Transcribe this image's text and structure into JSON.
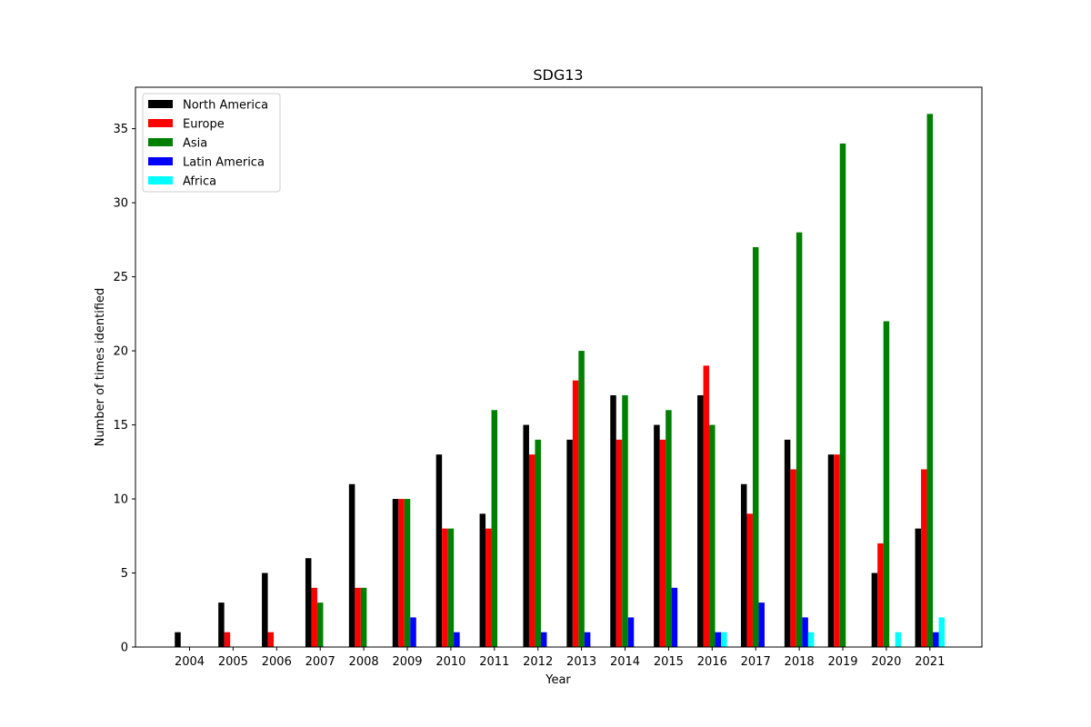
{
  "chart_data": {
    "type": "bar",
    "title": "SDG13",
    "xlabel": "Year",
    "ylabel": "Number of times identified",
    "ylim": [
      0,
      37.8
    ],
    "yticks": [
      0,
      5,
      10,
      15,
      20,
      25,
      30,
      35
    ],
    "legend_position": "top-left",
    "grid": false,
    "categories": [
      "2004",
      "2005",
      "2006",
      "2007",
      "2008",
      "2009",
      "2010",
      "2011",
      "2012",
      "2013",
      "2014",
      "2015",
      "2016",
      "2017",
      "2018",
      "2019",
      "2020",
      "2021"
    ],
    "series": [
      {
        "name": "North America",
        "color": "#000000",
        "values": [
          1,
          3,
          5,
          6,
          11,
          10,
          13,
          9,
          15,
          14,
          17,
          15,
          17,
          11,
          14,
          13,
          5,
          8
        ]
      },
      {
        "name": "Europe",
        "color": "#ff0000",
        "values": [
          0,
          1,
          1,
          4,
          4,
          10,
          8,
          8,
          13,
          18,
          14,
          14,
          19,
          9,
          12,
          13,
          7,
          12
        ]
      },
      {
        "name": "Asia",
        "color": "#008000",
        "values": [
          0,
          0,
          0,
          3,
          4,
          10,
          8,
          16,
          14,
          20,
          17,
          16,
          15,
          27,
          28,
          34,
          22,
          36
        ]
      },
      {
        "name": "Latin America",
        "color": "#0000ff",
        "values": [
          0,
          0,
          0,
          0,
          0,
          2,
          1,
          0,
          1,
          1,
          2,
          4,
          1,
          3,
          2,
          0,
          0,
          1
        ]
      },
      {
        "name": "Africa",
        "color": "#00ffff",
        "values": [
          0,
          0,
          0,
          0,
          0,
          0,
          0,
          0,
          0,
          0,
          0,
          0,
          1,
          0,
          1,
          0,
          1,
          2
        ]
      }
    ]
  }
}
